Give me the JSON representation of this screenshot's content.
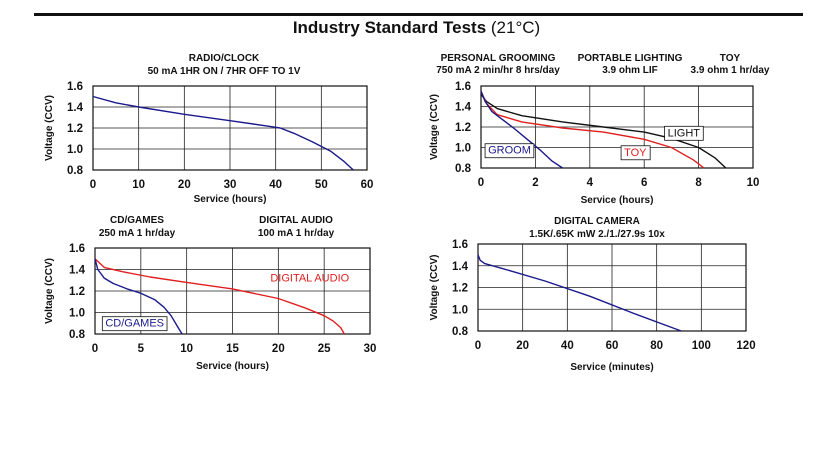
{
  "page": {
    "title_bold": "Industry Standard Tests",
    "title_rest": " (21°C)"
  },
  "chart_data": [
    {
      "type": "line",
      "headings": [
        {
          "lines": [
            "RADIO/CLOCK",
            "50 mA 1HR ON / 7HR OFF TO 1V"
          ]
        }
      ],
      "xlabel": "Service (hours)",
      "ylabel": "Voltage (CCV)",
      "xlim": [
        0,
        60
      ],
      "ylim": [
        0.8,
        1.6
      ],
      "xticks": [
        "0",
        "10",
        "20",
        "30",
        "40",
        "50",
        "60"
      ],
      "yticks": [
        "0.8",
        "1.0",
        "1.2",
        "1.4",
        "1.6"
      ],
      "grid": true,
      "series": [
        {
          "name": "",
          "color": "#1a1a8c",
          "x": [
            0,
            5,
            10,
            20,
            30,
            38,
            41,
            44,
            48,
            52,
            55,
            57
          ],
          "y": [
            1.5,
            1.44,
            1.4,
            1.33,
            1.27,
            1.22,
            1.2,
            1.15,
            1.07,
            0.98,
            0.88,
            0.8
          ]
        }
      ],
      "annotations": []
    },
    {
      "type": "line",
      "headings": [
        {
          "lines": [
            "PERSONAL GROOMING",
            "750 mA 2 min/hr 8 hrs/day"
          ]
        },
        {
          "lines": [
            "PORTABLE LIGHTING",
            "3.9 ohm LIF"
          ]
        },
        {
          "lines": [
            "TOY",
            "3.9 ohm 1 hr/day"
          ]
        }
      ],
      "xlabel": "Service (hours)",
      "ylabel": "Voltage (CCV)",
      "xlim": [
        0,
        10
      ],
      "ylim": [
        0.8,
        1.6
      ],
      "xticks": [
        "0",
        "2",
        "4",
        "6",
        "8",
        "10"
      ],
      "yticks": [
        "0.8",
        "1.0",
        "1.2",
        "1.4",
        "1.6"
      ],
      "grid": true,
      "series": [
        {
          "name": "",
          "color": "#111111",
          "x": [
            0,
            0.2,
            0.6,
            1.5,
            3,
            4.5,
            6,
            7,
            8,
            8.6,
            9
          ],
          "y": [
            1.52,
            1.45,
            1.38,
            1.31,
            1.25,
            1.2,
            1.15,
            1.09,
            1.0,
            0.9,
            0.8
          ]
        },
        {
          "name": "",
          "color": "#e02020",
          "x": [
            0,
            0.2,
            0.6,
            1.5,
            3,
            4.5,
            6,
            7,
            7.8,
            8.2
          ],
          "y": [
            1.55,
            1.43,
            1.32,
            1.25,
            1.19,
            1.15,
            1.08,
            1.0,
            0.88,
            0.8
          ]
        },
        {
          "name": "",
          "color": "#1a1a8c",
          "x": [
            0,
            0.15,
            0.4,
            0.8,
            1.2,
            1.7,
            2.2,
            2.6,
            3.0
          ],
          "y": [
            1.55,
            1.45,
            1.35,
            1.27,
            1.19,
            1.08,
            0.97,
            0.87,
            0.8
          ]
        }
      ],
      "annotations": [
        {
          "text": "LIGHT",
          "x": 6.75,
          "y": 1.08,
          "color": "#111111",
          "box": true
        },
        {
          "text": "TOY",
          "x": 5.15,
          "y": 0.89,
          "color": "#e02020",
          "box": true
        },
        {
          "text": "GROOM",
          "x": 0.15,
          "y": 0.91,
          "color": "#1a1a8c",
          "box": true
        }
      ]
    },
    {
      "type": "line",
      "headings": [
        {
          "lines": [
            "CD/GAMES",
            "250 mA 1 hr/day"
          ]
        },
        {
          "lines": [
            "DIGITAL AUDIO",
            "100 mA 1 hr/day"
          ]
        }
      ],
      "xlabel": "Service (hours)",
      "ylabel": "Voltage (CCV)",
      "xlim": [
        0,
        30
      ],
      "ylim": [
        0.8,
        1.6
      ],
      "xticks": [
        "0",
        "5",
        "10",
        "15",
        "20",
        "25",
        "30"
      ],
      "yticks": [
        "0.8",
        "1.0",
        "1.2",
        "1.4",
        "1.6"
      ],
      "grid": true,
      "series": [
        {
          "name": "",
          "color": "#e02020",
          "x": [
            0,
            1,
            3,
            6,
            10,
            15,
            20,
            23,
            25,
            26,
            26.8,
            27.2
          ],
          "y": [
            1.5,
            1.42,
            1.38,
            1.33,
            1.28,
            1.22,
            1.13,
            1.04,
            0.97,
            0.92,
            0.86,
            0.8
          ]
        },
        {
          "name": "",
          "color": "#1a1a8c",
          "x": [
            0,
            0.3,
            1,
            2,
            3.5,
            5,
            6.5,
            7.5,
            8.3,
            9,
            9.5
          ],
          "y": [
            1.5,
            1.4,
            1.32,
            1.27,
            1.22,
            1.18,
            1.12,
            1.05,
            0.97,
            0.87,
            0.8
          ]
        }
      ],
      "annotations": [
        {
          "text": "DIGITAL AUDIO",
          "x": 18.8,
          "y": 1.26,
          "color": "#e02020",
          "box": false
        },
        {
          "text": "CD/GAMES",
          "x": 0.8,
          "y": 0.84,
          "color": "#1a1a8c",
          "box": true
        }
      ]
    },
    {
      "type": "line",
      "headings": [
        {
          "lines": [
            "DIGITAL CAMERA",
            "1.5K/.65K mW 2./1./27.9s 10x"
          ]
        }
      ],
      "xlabel": "Service (minutes)",
      "ylabel": "Voltage (CCV)",
      "xlim": [
        0,
        120
      ],
      "ylim": [
        0.8,
        1.6
      ],
      "xticks": [
        "0",
        "20",
        "40",
        "60",
        "80",
        "100",
        "120"
      ],
      "yticks": [
        "0.8",
        "1.0",
        "1.2",
        "1.4",
        "1.6"
      ],
      "grid": true,
      "series": [
        {
          "name": "",
          "color": "#1a1a8c",
          "x": [
            0,
            1,
            3,
            10,
            30,
            50,
            70,
            91
          ],
          "y": [
            1.5,
            1.45,
            1.42,
            1.38,
            1.26,
            1.12,
            0.96,
            0.8
          ]
        }
      ],
      "annotations": []
    }
  ]
}
